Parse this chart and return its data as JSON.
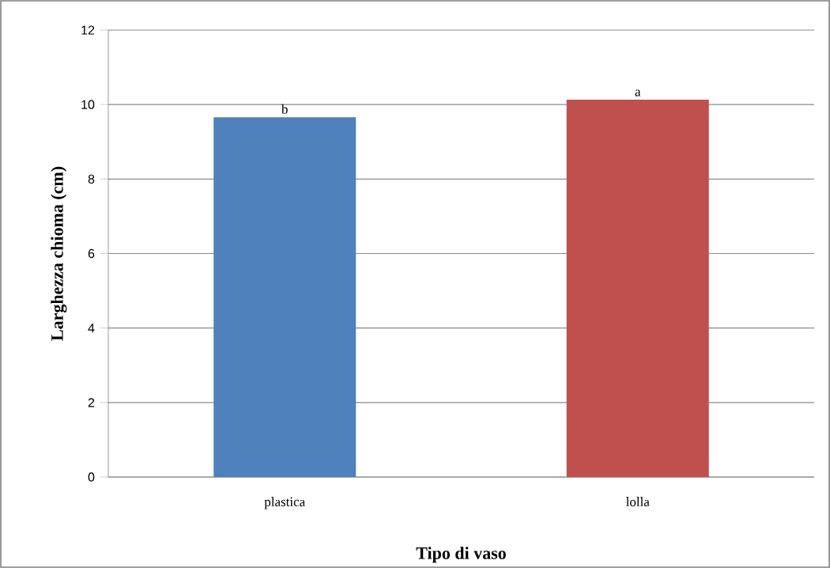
{
  "chart_data": {
    "type": "bar",
    "xlabel": "Tipo di vaso",
    "ylabel": "Larghezza chioma (cm)",
    "categories": [
      "plastica",
      "lolla"
    ],
    "values": [
      9.66,
      10.13
    ],
    "colors": [
      "#4f81bd",
      "#c0504d"
    ],
    "ylim": [
      0,
      12
    ],
    "yticks": [
      0,
      2,
      4,
      6,
      8,
      10,
      12
    ],
    "grid": "y",
    "annotations": [
      {
        "text": "b",
        "x": "plastica",
        "y": 9.66
      },
      {
        "text": "a",
        "x": "lolla",
        "y": 10.13
      }
    ]
  }
}
